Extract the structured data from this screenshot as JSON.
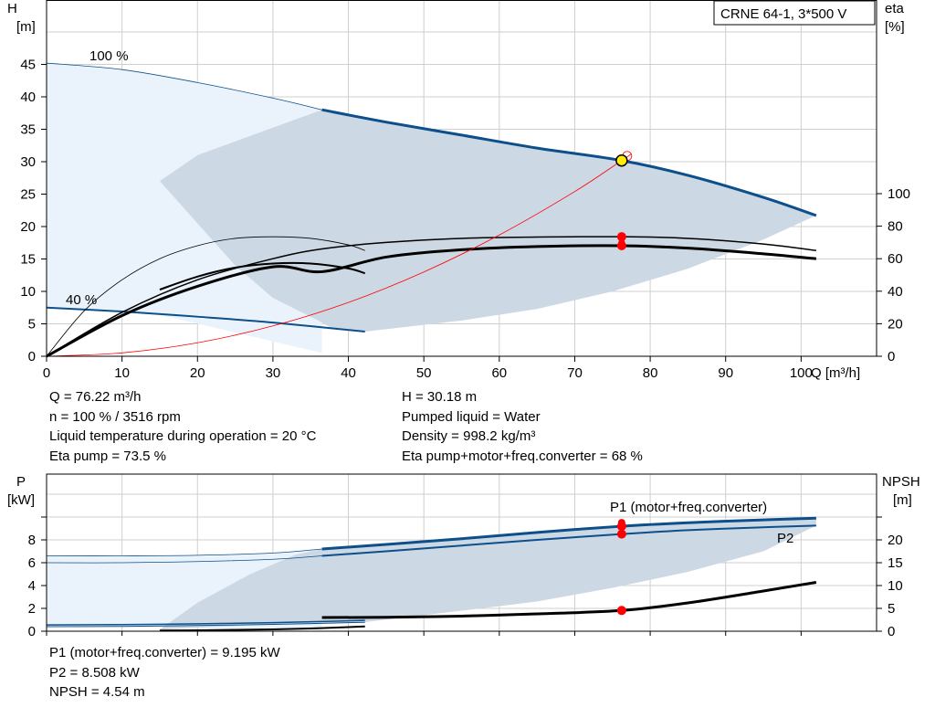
{
  "title_box": "CRNE 64-1, 3*500 V",
  "chart_data": [
    {
      "type": "line",
      "name": "head-efficiency",
      "xlabel": "Q [m³/h]",
      "ylabel_left": "H",
      "ylabel_left_unit": "[m]",
      "ylabel_right": "eta",
      "ylabel_right_unit": "[%]",
      "xlim": [
        0,
        110
      ],
      "ylim_left": [
        0,
        50
      ],
      "ylim_right": [
        0,
        200
      ],
      "x_ticks": [
        0,
        10,
        20,
        30,
        40,
        50,
        60,
        70,
        80,
        90,
        100
      ],
      "y_left_ticks": [
        0,
        5,
        10,
        15,
        20,
        25,
        30,
        35,
        40,
        45
      ],
      "y_right_ticks": [
        0,
        20,
        40,
        60,
        80,
        100
      ],
      "grid": true,
      "curve_labels": [
        "100 %",
        "40 %"
      ],
      "series": [
        {
          "id": "H100",
          "axis": "left",
          "color": "#0c4f8b",
          "width": 3,
          "x": [
            0,
            10,
            20,
            30,
            36.5,
            45,
            55,
            65,
            76.22,
            85,
            95,
            102
          ],
          "y": [
            45.2,
            44.2,
            42.2,
            39.8,
            38.0,
            36.1,
            34.1,
            32.1,
            30.18,
            27.9,
            24.5,
            21.7
          ]
        },
        {
          "id": "H40",
          "axis": "left",
          "color": "#0c4f8b",
          "width": 2,
          "x": [
            0,
            10,
            20,
            30,
            42.2
          ],
          "y": [
            7.5,
            6.9,
            6.1,
            5.2,
            3.8
          ]
        },
        {
          "id": "eta_pump",
          "axis": "right",
          "color": "#000000",
          "width": 1.5,
          "x": [
            0,
            10,
            20,
            30,
            36.5,
            45,
            55,
            65,
            76.22,
            85,
            95,
            102
          ],
          "y": [
            0,
            27,
            47,
            60,
            66,
            70,
            72.5,
            73.3,
            73.5,
            72.5,
            69,
            65
          ]
        },
        {
          "id": "eta_total",
          "axis": "right",
          "color": "#000000",
          "width": 3,
          "x": [
            0,
            10,
            20,
            30,
            36.5,
            45,
            55,
            65,
            76.22,
            85,
            95,
            102
          ],
          "y": [
            0,
            25,
            43,
            55,
            52,
            61,
            65.5,
            67.5,
            68,
            66.5,
            63,
            60
          ]
        },
        {
          "id": "eta_pump_40",
          "axis": "right",
          "color": "#000000",
          "width": 0.8,
          "x": [
            0,
            5,
            10,
            15,
            20,
            25,
            30,
            35,
            40,
            42.2
          ],
          "y": [
            0,
            28,
            47,
            60,
            68,
            72.5,
            73.5,
            72.5,
            68.5,
            65
          ]
        },
        {
          "id": "eta_total_40",
          "axis": "right",
          "color": "#000000",
          "width": 2,
          "x": [
            15,
            20,
            25,
            30,
            35,
            40,
            42.2
          ],
          "y": [
            41,
            49,
            54.5,
            57,
            57,
            54,
            51
          ]
        },
        {
          "id": "system_curve",
          "axis": "left",
          "color": "#ff0000",
          "width": 0.8,
          "x": [
            0,
            10,
            20,
            30,
            40,
            50,
            60,
            70,
            76.22,
            77.5
          ],
          "y": [
            0,
            0.52,
            2.08,
            4.68,
            8.3,
            13,
            18.7,
            25.4,
            30.18,
            31.2
          ]
        }
      ],
      "duty_point": {
        "Q": 76.22,
        "H": 30.18,
        "eta_pump": 73.5,
        "eta_total": 68
      }
    },
    {
      "type": "line",
      "name": "power-npsh",
      "ylabel_left": "P",
      "ylabel_left_unit": "[kW]",
      "ylabel_right": "NPSH",
      "ylabel_right_unit": "[m]",
      "xlim": [
        0,
        110
      ],
      "ylim_left": [
        0,
        12
      ],
      "ylim_right": [
        0,
        30
      ],
      "y_left_ticks": [
        0,
        2,
        4,
        6,
        8
      ],
      "y_right_ticks": [
        0,
        5,
        10,
        15,
        20
      ],
      "grid": true,
      "series_labels": [
        "P1 (motor+freq.converter)",
        "P2"
      ],
      "series": [
        {
          "id": "P1",
          "axis": "left",
          "color": "#0c4f8b",
          "width": 3,
          "x": [
            0,
            10,
            20,
            30,
            36.5,
            45,
            55,
            65,
            76.22,
            85,
            95,
            102
          ],
          "y": [
            6.6,
            6.6,
            6.65,
            6.85,
            7.2,
            7.6,
            8.1,
            8.65,
            9.195,
            9.5,
            9.75,
            9.9
          ]
        },
        {
          "id": "P2",
          "axis": "left",
          "color": "#0c4f8b",
          "width": 2,
          "x": [
            0,
            10,
            20,
            30,
            36.5,
            45,
            55,
            65,
            76.22,
            85,
            95,
            102
          ],
          "y": [
            6.0,
            6.0,
            6.1,
            6.3,
            6.6,
            7.0,
            7.5,
            8.0,
            8.508,
            8.85,
            9.1,
            9.25
          ]
        },
        {
          "id": "P1_40",
          "axis": "left",
          "color": "#0c4f8b",
          "width": 1.5,
          "x": [
            0,
            10,
            20,
            30,
            42.2
          ],
          "y": [
            0.55,
            0.58,
            0.65,
            0.75,
            0.95
          ]
        },
        {
          "id": "P2_40",
          "axis": "left",
          "color": "#0c4f8b",
          "width": 1,
          "x": [
            0,
            10,
            20,
            30,
            42.2
          ],
          "y": [
            0.4,
            0.42,
            0.5,
            0.6,
            0.78
          ]
        },
        {
          "id": "NPSH",
          "axis": "right",
          "color": "#000000",
          "width": 3,
          "x": [
            36.5,
            45,
            55,
            65,
            76.22,
            85,
            95,
            102
          ],
          "y": [
            3.0,
            3.05,
            3.3,
            3.8,
            4.54,
            6.2,
            8.8,
            10.7
          ]
        },
        {
          "id": "NPSH_40",
          "axis": "right",
          "color": "#000000",
          "width": 2,
          "x": [
            15,
            20,
            25,
            30,
            35,
            40,
            42.2
          ],
          "y": [
            0.15,
            0.2,
            0.3,
            0.4,
            0.6,
            0.9,
            1.05
          ]
        }
      ],
      "duty_point": {
        "Q": 76.22,
        "P1": 9.195,
        "P2": 8.508,
        "NPSH": 4.54
      }
    }
  ],
  "info_left": [
    "Q = 76.22 m³/h",
    "n = 100 % / 3516 rpm",
    "Liquid temperature during operation = 20 °C",
    "Eta pump = 73.5 %"
  ],
  "info_right": [
    "H = 30.18 m",
    "Pumped liquid = Water",
    "Density = 998.2 kg/m³",
    "Eta pump+motor+freq.converter = 68 %"
  ],
  "info_bottom": [
    "P1 (motor+freq.converter) = 9.195 kW",
    "P2 = 8.508 kW",
    "NPSH = 4.54 m"
  ],
  "colors": {
    "curve_blue": "#0c4f8b",
    "area_light": "#eaf3fc",
    "area_grey": "#ccd8e4",
    "grid": "#cfcfcf",
    "duty_red": "#ff0000",
    "duty_yellow": "#ffee00"
  }
}
